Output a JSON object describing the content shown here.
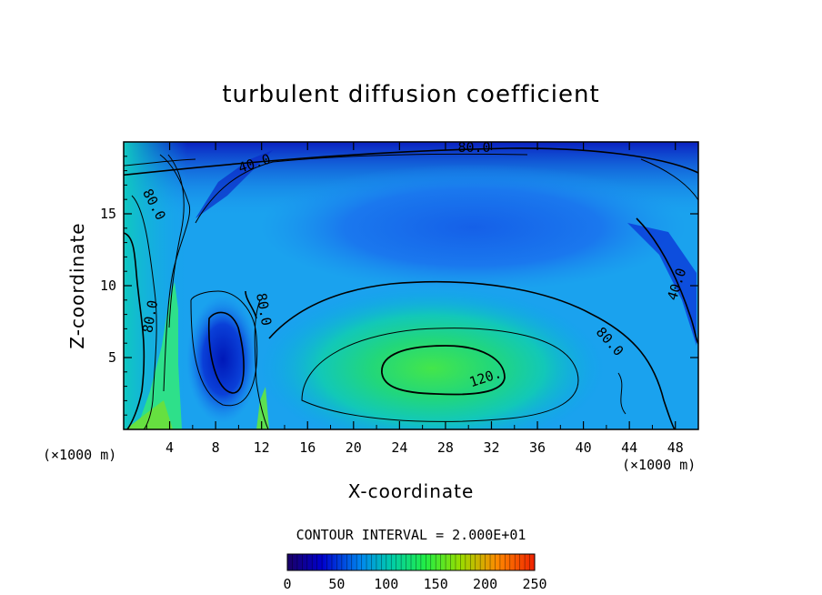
{
  "chart_data": {
    "type": "heatmap",
    "title": "turbulent diffusion coefficient",
    "xlabel": "X-coordinate",
    "ylabel": "Z-coordinate",
    "x_unit_label": "(×1000 m)",
    "x_unit_label_right": "(×1000 m)",
    "xlim": [
      0,
      50
    ],
    "ylim": [
      0,
      20
    ],
    "x_ticks": [
      "4",
      "8",
      "12",
      "16",
      "20",
      "24",
      "28",
      "32",
      "36",
      "40",
      "44",
      "48"
    ],
    "y_ticks": [
      "5",
      "10",
      "15"
    ],
    "contour_interval_text": "CONTOUR INTERVAL = 2.000E+01",
    "contour_interval": 20,
    "contour_labels": [
      {
        "text": "80.0",
        "x": 30.5,
        "y": 19.3
      },
      {
        "text": "40.0",
        "x": 11.5,
        "y": 18.2
      },
      {
        "text": "80.0",
        "x": 2.3,
        "y": 15.5
      },
      {
        "text": "80.0",
        "x": 2.7,
        "y": 7.8
      },
      {
        "text": "80.0",
        "x": 11.8,
        "y": 8.3
      },
      {
        "text": "80.0",
        "x": 42.0,
        "y": 5.9
      },
      {
        "text": "120.",
        "x": 31.6,
        "y": 3.3
      },
      {
        "text": "40.0",
        "x": 48.5,
        "y": 10.0
      }
    ],
    "colorbar": {
      "min": 0,
      "max": 250,
      "ticks": [
        "0",
        "50",
        "100",
        "150",
        "200",
        "250"
      ],
      "colors": [
        "#1a0066",
        "#0000cc",
        "#0088ee",
        "#00ccaa",
        "#22ee44",
        "#99dd00",
        "#ff8800",
        "#ee2200"
      ]
    },
    "value_field_summary": {
      "core_max": {
        "x": 27,
        "y": 4,
        "value": 120
      },
      "upper_min": {
        "x": 30,
        "y": 15,
        "value": 40
      }
    }
  }
}
